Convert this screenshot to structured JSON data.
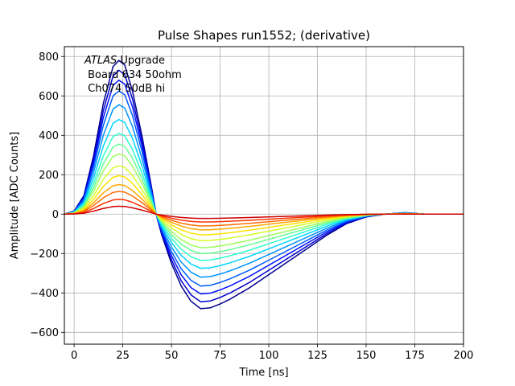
{
  "chart_data": {
    "type": "line",
    "title": "Pulse Shapes run1552; (derivative)",
    "xlabel": "Time [ns]",
    "ylabel": "Amplitude [ADC Counts]",
    "xlim": [
      -5,
      200
    ],
    "ylim": [
      -660,
      850
    ],
    "xticks": [
      0,
      25,
      50,
      75,
      100,
      125,
      150,
      175,
      200
    ],
    "yticks": [
      -600,
      -400,
      -200,
      0,
      200,
      400,
      600,
      800
    ],
    "ytick_labels": [
      "−600",
      "−400",
      "−200",
      "0",
      "200",
      "400",
      "600",
      "800"
    ],
    "grid": true,
    "colormap": "jet",
    "annotation": {
      "italic": "ATLAS",
      "rest": " Upgrade",
      "line2": " Board 634 50ohm",
      "line3": " Ch074 50dB hi"
    },
    "shape": {
      "x": [
        -5,
        0,
        5,
        10,
        15,
        20,
        23,
        26,
        30,
        35,
        40,
        45,
        50,
        55,
        60,
        65,
        70,
        75,
        80,
        90,
        100,
        110,
        120,
        130,
        140,
        150,
        160,
        170,
        180,
        190,
        200
      ],
      "y": [
        0,
        0.02,
        0.12,
        0.38,
        0.72,
        0.96,
        1.0,
        0.97,
        0.8,
        0.5,
        0.16,
        -0.22,
        -0.52,
        -0.76,
        -0.92,
        -1.0,
        -0.99,
        -0.95,
        -0.9,
        -0.78,
        -0.64,
        -0.5,
        -0.36,
        -0.22,
        -0.1,
        -0.03,
        0.0,
        0.01,
        0.0,
        0.0,
        0.0
      ]
    },
    "series": [
      {
        "peak": 780,
        "trough": -480,
        "color": "#00008f"
      },
      {
        "peak": 730,
        "trough": -445,
        "color": "#0000cd"
      },
      {
        "peak": 680,
        "trough": -405,
        "color": "#0010ff"
      },
      {
        "peak": 625,
        "trough": -365,
        "color": "#005cff"
      },
      {
        "peak": 555,
        "trough": -320,
        "color": "#0094ff"
      },
      {
        "peak": 480,
        "trough": -275,
        "color": "#00d4ff"
      },
      {
        "peak": 410,
        "trough": -235,
        "color": "#2cffcc"
      },
      {
        "peak": 355,
        "trough": -200,
        "color": "#64ff94"
      },
      {
        "peak": 305,
        "trough": -170,
        "color": "#9cff5c"
      },
      {
        "peak": 245,
        "trough": -135,
        "color": "#d4ff24"
      },
      {
        "peak": 195,
        "trough": -105,
        "color": "#ffe200"
      },
      {
        "peak": 150,
        "trough": -80,
        "color": "#ffa800"
      },
      {
        "peak": 115,
        "trough": -60,
        "color": "#ff6c00"
      },
      {
        "peak": 75,
        "trough": -40,
        "color": "#ff3200"
      },
      {
        "peak": 40,
        "trough": -22,
        "color": "#cd0000"
      }
    ]
  }
}
